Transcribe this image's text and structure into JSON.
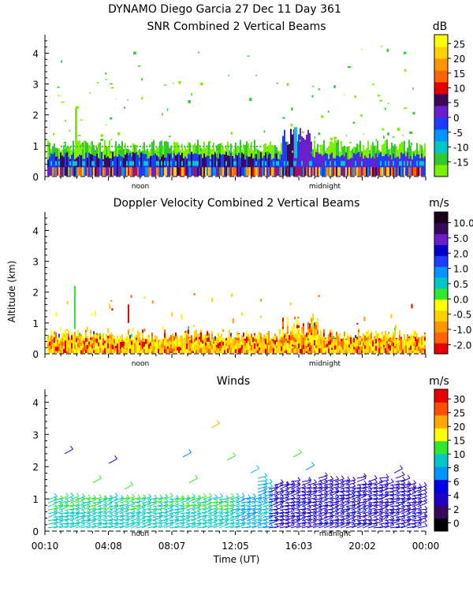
{
  "header": {
    "title_line1": "DYNAMO Diego Garcia  27 Dec 11 Day 361"
  },
  "chart_data": [
    {
      "type": "heatmap",
      "title": "SNR Combined 2 Vertical Beams",
      "ylabel": "Altitude (km)",
      "ylim": [
        0,
        4.6
      ],
      "yticks": [
        "0",
        "1",
        "2",
        "3",
        "4"
      ],
      "colorbar": {
        "unit": "dB",
        "labels": [
          "-15",
          "-10",
          "-5",
          "0",
          "5",
          "10",
          "15",
          "20",
          "25"
        ],
        "colors": [
          "#7cf000",
          "#32c832",
          "#00c8c8",
          "#0096ff",
          "#1e3cff",
          "#6a1ecc",
          "#3a0a5a",
          "#e60000",
          "#ff6400",
          "#ff9600",
          "#ffd200",
          "#ffff00"
        ]
      },
      "markers": [
        "noon",
        "midnight"
      ]
    },
    {
      "type": "heatmap",
      "title": "Doppler Velocity Combined 2 Vertical Beams",
      "ylabel": "Altitude (km)",
      "ylim": [
        0,
        4.6
      ],
      "yticks": [
        "0",
        "1",
        "2",
        "3",
        "4"
      ],
      "colorbar": {
        "unit": "m/s",
        "labels": [
          "-2.0",
          "-1.0",
          "-0.5",
          "0.0",
          "0.5",
          "1.0",
          "2.0",
          "5.0",
          "10.0"
        ],
        "colors": [
          "#e60000",
          "#ff6400",
          "#ff9600",
          "#ffd200",
          "#ffff00",
          "#32e632",
          "#00c8c8",
          "#0096ff",
          "#1e3cff",
          "#0000c8",
          "#6a1ecc",
          "#3a0a5a",
          "#1a001a"
        ]
      },
      "markers": [
        "noon",
        "midnight"
      ]
    },
    {
      "type": "scatter",
      "title": "Winds",
      "xlabel": "Time (UT)",
      "ylabel": "Altitude (km)",
      "ylim": [
        0,
        4.4
      ],
      "yticks": [
        "0",
        "1",
        "2",
        "3",
        "4"
      ],
      "xticks": [
        "00:10",
        "04:08",
        "08:07",
        "12:05",
        "16:03",
        "20:02",
        "00:00"
      ],
      "colorbar": {
        "unit": "m/s",
        "labels": [
          "0",
          "2",
          "4",
          "6",
          "8",
          "10",
          "15",
          "20",
          "25",
          "30"
        ],
        "colors": [
          "#000000",
          "#3a0a5a",
          "#1e00c8",
          "#0000e6",
          "#0096ff",
          "#00c8c8",
          "#32e632",
          "#ffff00",
          "#ffaa00",
          "#ff5000",
          "#e60000"
        ]
      },
      "markers": [
        "noon",
        "midnight"
      ]
    }
  ]
}
